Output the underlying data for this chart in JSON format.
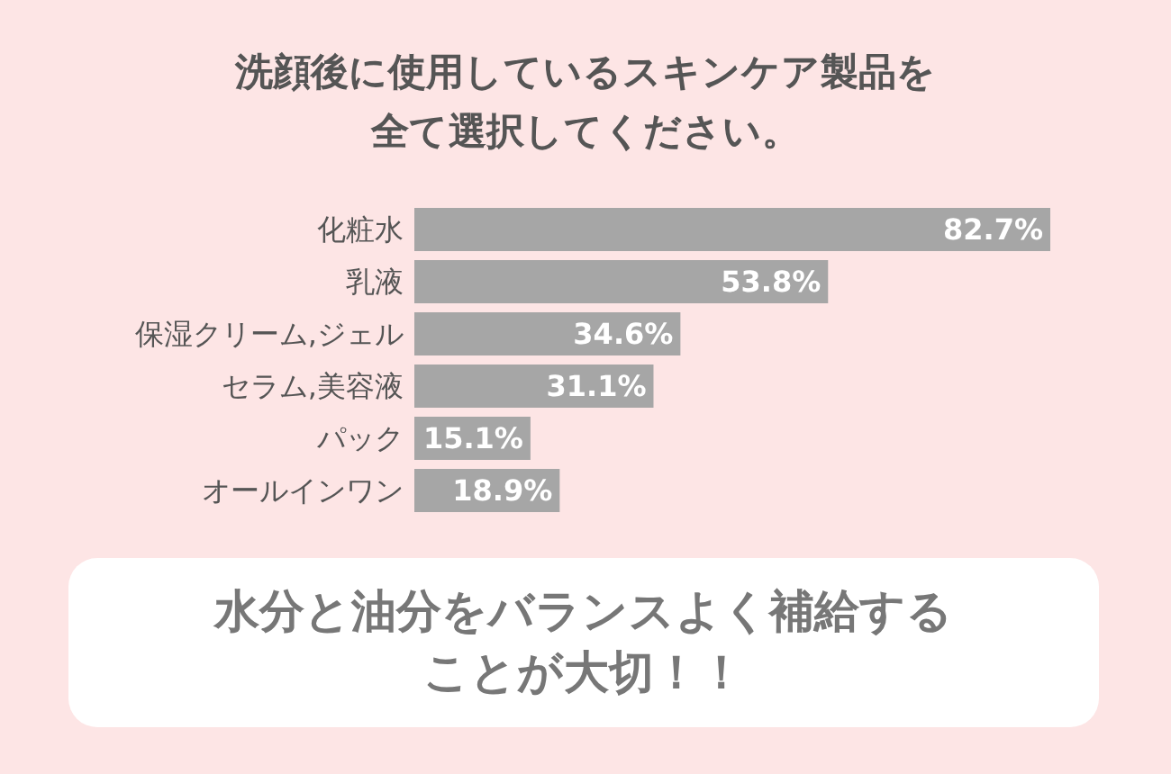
{
  "chart_data": {
    "type": "bar",
    "orientation": "horizontal",
    "title": "洗顔後に使用しているスキンケア製品を全て選択してください。",
    "categories": [
      "化粧水",
      "乳液",
      "保湿クリーム,ジェル",
      "セラム,美容液",
      "パック",
      "オールインワン"
    ],
    "values": [
      82.7,
      53.8,
      34.6,
      31.1,
      15.1,
      18.9
    ],
    "value_labels": [
      "82.7%",
      "53.8%",
      "34.6%",
      "31.1%",
      "15.1%",
      "18.9%"
    ],
    "color": "#a6a6a6",
    "annotations": [
      "水分と油分をバランスよく補給することが大切！！"
    ]
  }
}
